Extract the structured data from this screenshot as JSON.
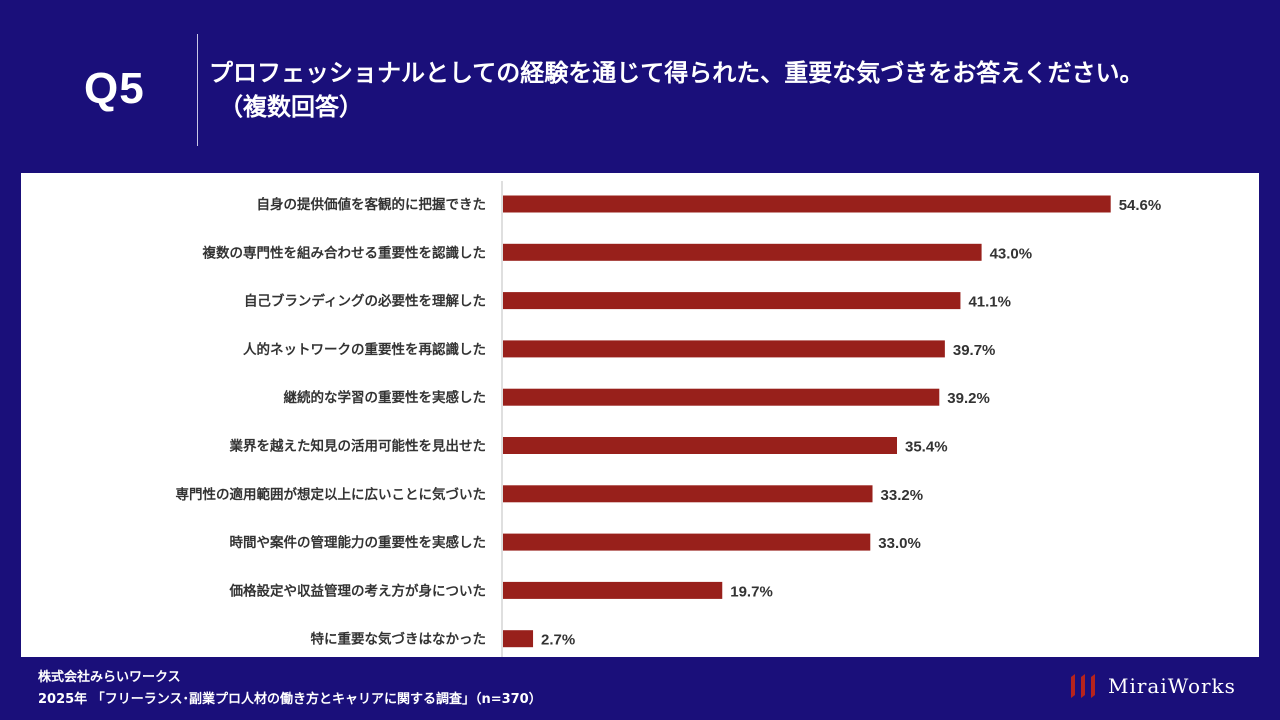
{
  "header": {
    "question_label": "Q5",
    "title_line1": "プロフェッショナルとしての経験を通じて得られた、重要な気づきをお答えください。",
    "title_line2": "（複数回答）"
  },
  "footer": {
    "company": "株式会社みらいワークス",
    "survey": "2025年 「フリーランス･副業プロ人材の働き方とキャリアに関する調査」（n=370）"
  },
  "logo": {
    "text": "MiraiWorks"
  },
  "colors": {
    "background": "#1a0f7a",
    "bar": "#98201b",
    "text": "#333333"
  },
  "chart_data": {
    "type": "bar",
    "orientation": "horizontal",
    "title": "",
    "xlabel": "",
    "ylabel": "",
    "xlim": [
      0,
      60
    ],
    "categories": [
      "自身の提供価値を客観的に把握できた",
      "複数の専門性を組み合わせる重要性を認識した",
      "自己ブランディングの必要性を理解した",
      "人的ネットワークの重要性を再認識した",
      "継続的な学習の重要性を実感した",
      "業界を越えた知見の活用可能性を見出せた",
      "専門性の適用範囲が想定以上に広いことに気づいた",
      "時間や案件の管理能力の重要性を実感した",
      "価格設定や収益管理の考え方が身についた",
      "特に重要な気づきはなかった"
    ],
    "values": [
      54.6,
      43.0,
      41.1,
      39.7,
      39.2,
      35.4,
      33.2,
      33.0,
      19.7,
      2.7
    ],
    "value_labels": [
      "54.6%",
      "43.0%",
      "41.1%",
      "39.7%",
      "39.2%",
      "35.4%",
      "33.2%",
      "33.0%",
      "19.7%",
      "2.7%"
    ]
  }
}
